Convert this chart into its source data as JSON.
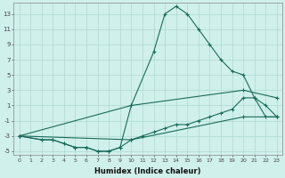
{
  "xlabel": "Humidex (Indice chaleur)",
  "bg_color": "#cff0eb",
  "line_color": "#1a6b5a",
  "grid_color": "#afd8d0",
  "xlim": [
    -0.5,
    23.5
  ],
  "ylim": [
    -5.5,
    14.5
  ],
  "yticks": [
    -5,
    -3,
    -1,
    1,
    3,
    5,
    7,
    9,
    11,
    13
  ],
  "xticks": [
    0,
    1,
    2,
    3,
    4,
    5,
    6,
    7,
    8,
    9,
    10,
    11,
    12,
    13,
    14,
    15,
    16,
    17,
    18,
    19,
    20,
    21,
    22,
    23
  ],
  "line1_x": [
    0,
    2,
    3,
    4,
    5,
    6,
    7,
    8,
    9,
    10,
    12,
    13,
    14,
    15,
    16,
    17,
    18,
    19,
    20,
    21,
    22,
    23
  ],
  "line1_y": [
    -3,
    -3.5,
    -3.5,
    -4,
    -4.5,
    -4.5,
    -5,
    -5,
    -4.5,
    1,
    8,
    13,
    14,
    13,
    11,
    9,
    7,
    5.5,
    5,
    2,
    -0.5,
    -0.5
  ],
  "line2_x": [
    0,
    2,
    3,
    4,
    5,
    6,
    7,
    8,
    9,
    10,
    11,
    12,
    13,
    14,
    15,
    16,
    17,
    18,
    19,
    20,
    21,
    22,
    23
  ],
  "line2_y": [
    -3,
    -3.5,
    -3.5,
    -4,
    -4.5,
    -4.5,
    -5,
    -5,
    -4.5,
    -3.5,
    -3,
    -2.5,
    -2,
    -1.5,
    -1.5,
    -1,
    -0.5,
    0,
    0.5,
    2,
    2,
    1,
    -0.5
  ],
  "line3_x": [
    0,
    10,
    20,
    23
  ],
  "line3_y": [
    -3,
    1,
    3,
    2
  ],
  "line4_x": [
    0,
    10,
    20,
    23
  ],
  "line4_y": [
    -3,
    -3.5,
    -0.5,
    -0.5
  ]
}
